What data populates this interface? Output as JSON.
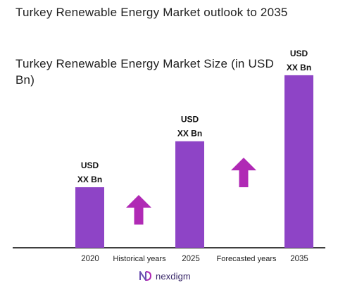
{
  "title": "Turkey Renewable Energy Market outlook to 2035",
  "chart_data": {
    "type": "bar",
    "title": "Turkey Renewable Energy Market Size (in USD Bn)",
    "categories": [
      "2020",
      "2025",
      "2035"
    ],
    "values": [
      1.0,
      1.76,
      2.85
    ],
    "data_labels": [
      [
        "USD",
        "XX Bn"
      ],
      [
        "USD",
        "XX Bn"
      ],
      [
        "USD",
        "XX Bn"
      ]
    ],
    "annotations": [
      "Historical years",
      "Forecasted years"
    ],
    "bar_color": "#8e44c6",
    "arrow_color": "#b02ab5",
    "grid": false
  },
  "brand": {
    "name": "nexdigm",
    "icon": "nexdigm-logo-icon"
  }
}
